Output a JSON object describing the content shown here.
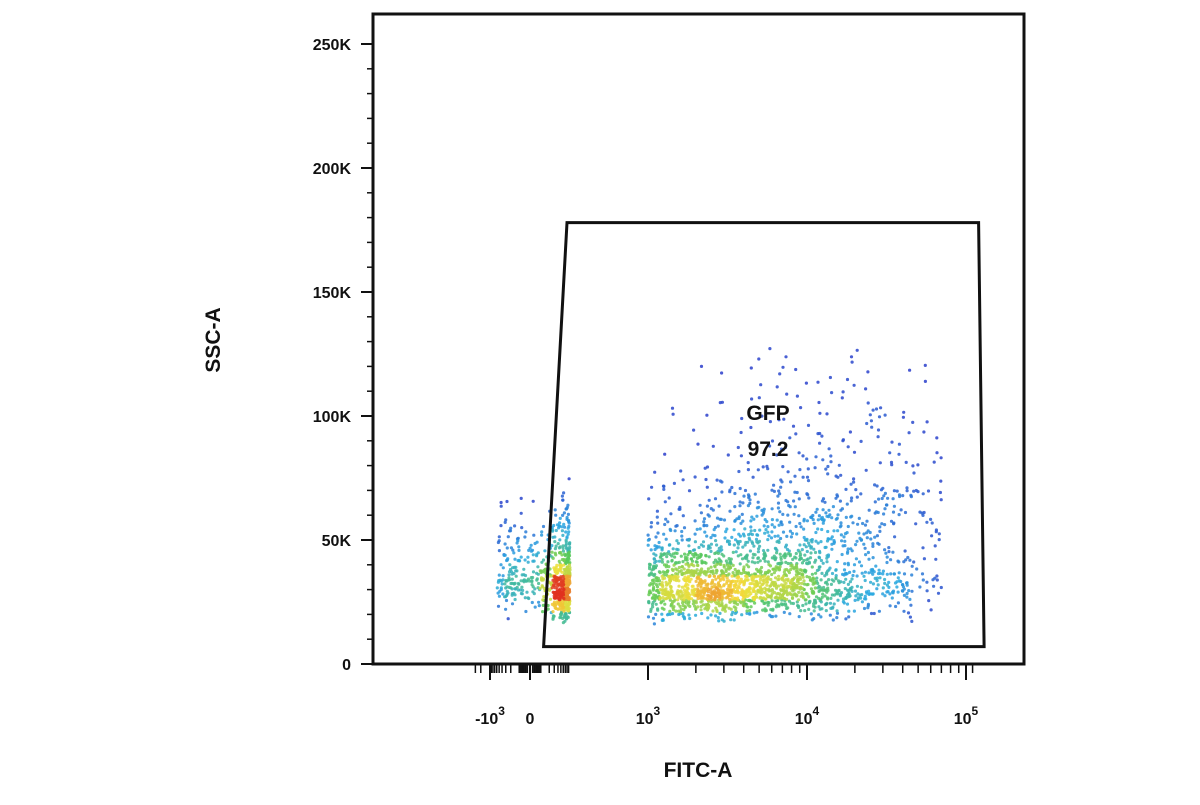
{
  "chart_data": {
    "type": "scatter",
    "plot": "flow cytometry pseudocolor density plot",
    "xlabel": "FITC-A",
    "ylabel": "SSC-A",
    "x_scale": "biexponential",
    "xlim": [
      -2000,
      150000
    ],
    "ylim": [
      0,
      262144
    ],
    "x_ticks": [
      {
        "value": -1000,
        "label": "-10",
        "exp": "3"
      },
      {
        "value": 0,
        "label": "0",
        "exp": ""
      },
      {
        "value": 1000,
        "label": "10",
        "exp": "3"
      },
      {
        "value": 10000,
        "label": "10",
        "exp": "4"
      },
      {
        "value": 100000,
        "label": "10",
        "exp": "5"
      }
    ],
    "y_ticks": [
      {
        "value": 0,
        "label": "0"
      },
      {
        "value": 50000,
        "label": "50K"
      },
      {
        "value": 100000,
        "label": "100K"
      },
      {
        "value": 150000,
        "label": "150K"
      },
      {
        "value": 200000,
        "label": "200K"
      },
      {
        "value": 250000,
        "label": "250K"
      }
    ],
    "gate": {
      "name": "GFP",
      "percent": "97.2",
      "vertices": [
        [
          120,
          7000
        ],
        [
          800,
          178000
        ],
        [
          120000,
          178000
        ],
        [
          130000,
          7000
        ]
      ]
    },
    "density_clusters": [
      {
        "x_center": 2500,
        "y_center": 30000,
        "x_spread_decades": 0.5,
        "y_spread": 9000,
        "weight": 0.55
      },
      {
        "x_center": 6000,
        "y_center": 38000,
        "x_spread_decades": 0.6,
        "y_spread": 14000,
        "weight": 0.25
      },
      {
        "x_center": 12000,
        "y_center": 70000,
        "x_spread_decades": 0.55,
        "y_spread": 22000,
        "weight": 0.12
      },
      {
        "x_center": -50,
        "y_center": 35000,
        "x_spread_decades": 0.2,
        "y_spread": 10000,
        "weight": 0.08
      }
    ],
    "colors": {
      "low": "#2a35c9",
      "mid_low": "#2aa9e0",
      "mid": "#58c95a",
      "mid_high": "#f3e03a",
      "high": "#e0311f",
      "axis": "#111111"
    },
    "grid": false,
    "legend": "none"
  }
}
